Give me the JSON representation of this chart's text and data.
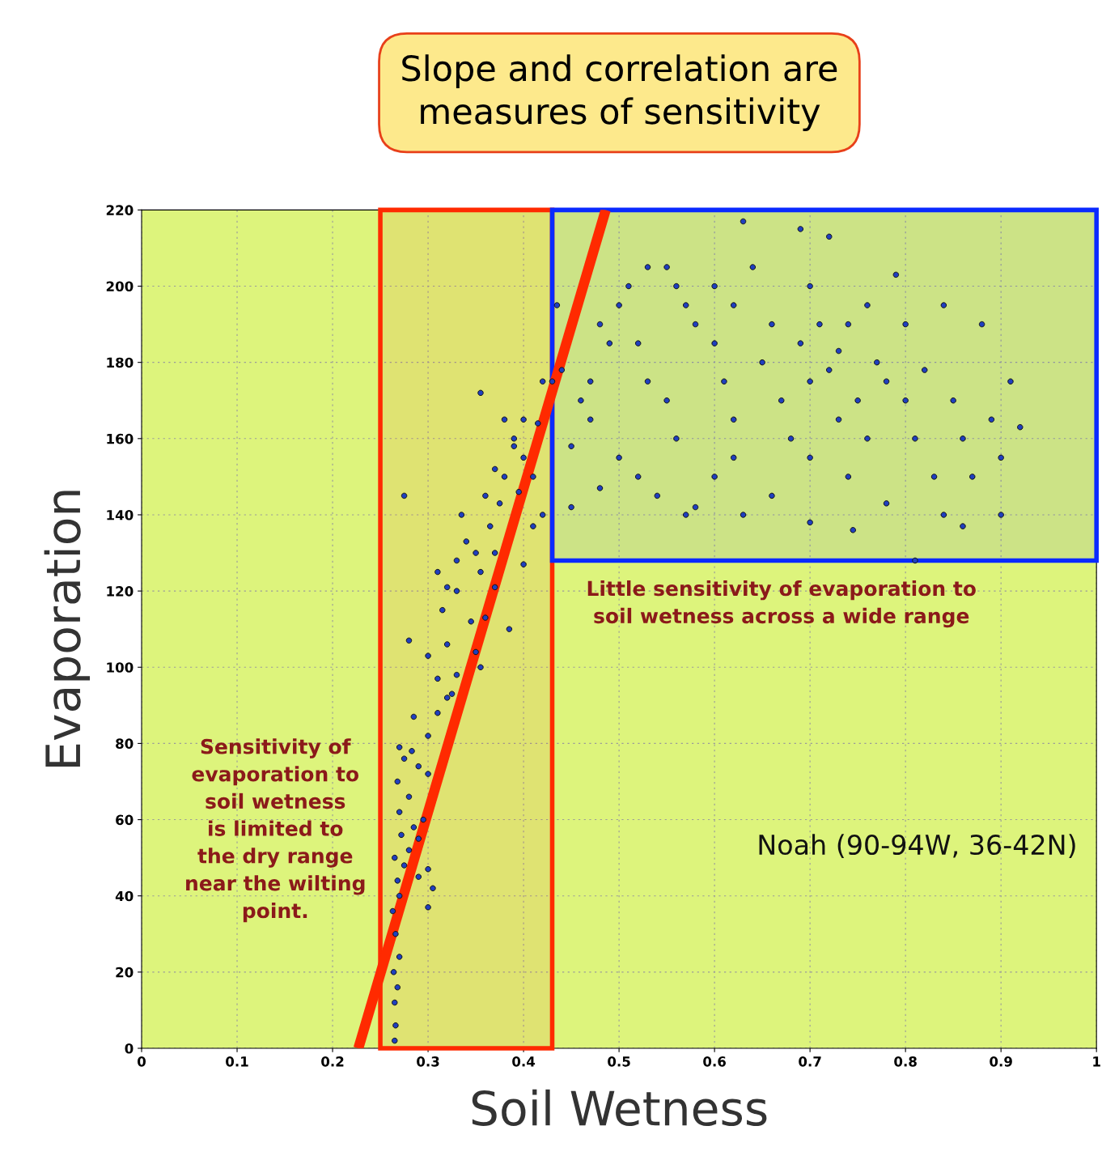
{
  "chart_data": {
    "type": "scatter",
    "title": "Slope and correlation are\nmeasures of sensitivity",
    "xlabel": "Soil Wetness",
    "ylabel": "Evaporation",
    "xlim": [
      0,
      1
    ],
    "ylim": [
      0,
      220
    ],
    "xticks": [
      0,
      0.1,
      0.2,
      0.3,
      0.4,
      0.5,
      0.6,
      0.7,
      0.8,
      0.9,
      1
    ],
    "yticks": [
      0,
      20,
      40,
      60,
      80,
      100,
      120,
      140,
      160,
      180,
      200,
      220
    ],
    "grid": true,
    "series": [
      {
        "color": "#1f3fbf",
        "marker": "circle",
        "x": [
          0.265,
          0.266,
          0.265,
          0.268,
          0.264,
          0.27,
          0.266,
          0.263,
          0.27,
          0.268,
          0.275,
          0.265,
          0.28,
          0.272,
          0.285,
          0.29,
          0.295,
          0.27,
          0.268,
          0.28,
          0.275,
          0.27,
          0.283,
          0.29,
          0.3,
          0.285,
          0.3,
          0.31,
          0.32,
          0.305,
          0.3,
          0.3,
          0.29,
          0.28,
          0.3,
          0.31,
          0.325,
          0.33,
          0.32,
          0.315,
          0.32,
          0.31,
          0.33,
          0.34,
          0.335,
          0.33,
          0.345,
          0.35,
          0.355,
          0.36,
          0.37,
          0.355,
          0.35,
          0.37,
          0.365,
          0.36,
          0.375,
          0.38,
          0.37,
          0.39,
          0.4,
          0.39,
          0.38,
          0.4,
          0.41,
          0.395,
          0.42,
          0.41,
          0.4,
          0.385,
          0.275,
          0.355,
          0.415,
          0.42,
          0.43,
          0.44,
          0.435,
          0.45,
          0.46,
          0.47,
          0.48,
          0.49,
          0.5,
          0.51,
          0.52,
          0.53,
          0.5,
          0.52,
          0.54,
          0.55,
          0.56,
          0.57,
          0.58,
          0.55,
          0.56,
          0.57,
          0.58,
          0.6,
          0.62,
          0.61,
          0.6,
          0.62,
          0.63,
          0.64,
          0.65,
          0.66,
          0.67,
          0.68,
          0.66,
          0.63,
          0.7,
          0.7,
          0.69,
          0.72,
          0.71,
          0.72,
          0.73,
          0.74,
          0.74,
          0.75,
          0.76,
          0.77,
          0.78,
          0.79,
          0.8,
          0.8,
          0.81,
          0.82,
          0.83,
          0.84,
          0.84,
          0.85,
          0.86,
          0.87,
          0.88,
          0.89,
          0.9,
          0.9,
          0.91,
          0.92,
          0.7,
          0.745,
          0.81,
          0.6,
          0.76,
          0.69,
          0.53,
          0.48,
          0.45,
          0.73,
          0.78,
          0.86,
          0.47,
          0.62,
          0.7
        ],
        "values": [
          2,
          6,
          12,
          16,
          20,
          24,
          30,
          36,
          40,
          44,
          48,
          50,
          52,
          56,
          58,
          55,
          60,
          62,
          70,
          66,
          76,
          79,
          78,
          74,
          72,
          87,
          82,
          88,
          92,
          42,
          37,
          47,
          45,
          107,
          103,
          97,
          93,
          98,
          106,
          115,
          121,
          125,
          128,
          133,
          140,
          120,
          112,
          104,
          100,
          113,
          121,
          125,
          130,
          130,
          137,
          145,
          143,
          150,
          152,
          158,
          165,
          160,
          165,
          155,
          150,
          146,
          140,
          137,
          127,
          110,
          145,
          172,
          164,
          175,
          175,
          178,
          195,
          158,
          170,
          175,
          190,
          185,
          195,
          200,
          185,
          175,
          155,
          150,
          145,
          205,
          200,
          195,
          190,
          170,
          160,
          140,
          142,
          150,
          165,
          175,
          185,
          195,
          217,
          205,
          180,
          190,
          170,
          160,
          145,
          140,
          155,
          200,
          215,
          213,
          190,
          178,
          165,
          150,
          190,
          170,
          160,
          180,
          175,
          203,
          190,
          170,
          160,
          178,
          150,
          140,
          195,
          170,
          160,
          150,
          190,
          165,
          140,
          155,
          175,
          163,
          138,
          136,
          128,
          200,
          195,
          185,
          205,
          147,
          142,
          183,
          143,
          137,
          165,
          155,
          175
        ]
      },
      {
        "type": "line",
        "color": "#ff2a00",
        "x": [
          0.227,
          0.486
        ],
        "values": [
          0,
          220
        ]
      }
    ],
    "bands": [
      {
        "axis": "x",
        "from": 0.25,
        "to": 0.43,
        "color": "#ff2a00"
      },
      {
        "axis": "y",
        "from": 128,
        "to": 220,
        "color": "#0a2aff"
      }
    ],
    "annotations": [
      "Sensitivity of\nevaporation to\nsoil wetness\nis limited to\nthe dry range\nnear the wilting\npoint.",
      "Little sensitivity of evaporation to\nsoil wetness across a wide range",
      "Noah (90-94W, 36-42N)"
    ]
  }
}
